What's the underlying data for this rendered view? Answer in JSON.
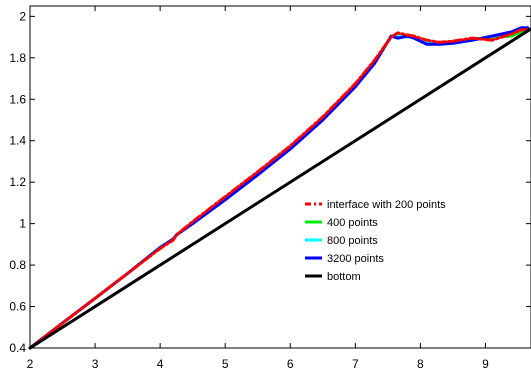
{
  "chart_data": {
    "type": "line",
    "title": "",
    "xlabel": "",
    "ylabel": "",
    "xlim": [
      2,
      9.7
    ],
    "ylim": [
      0.4,
      2.05
    ],
    "xticks": [
      2,
      3,
      4,
      5,
      6,
      7,
      8,
      9
    ],
    "yticks": [
      0.4,
      0.6,
      0.8,
      1,
      1.2,
      1.4,
      1.6,
      1.8,
      2
    ],
    "grid": false,
    "legend_position": "center-right",
    "series": [
      {
        "name": "interface with 200 points",
        "color": "#ff0000",
        "style": "dashdot",
        "x": [
          2.0,
          2.5,
          3.0,
          3.5,
          4.0,
          4.2,
          4.25,
          4.5,
          5.0,
          5.5,
          6.0,
          6.5,
          7.0,
          7.3,
          7.55,
          7.65,
          7.8,
          7.9,
          8.1,
          8.3,
          8.5,
          8.8,
          9.1,
          9.4,
          9.55,
          9.65
        ],
        "y": [
          0.4,
          0.52,
          0.64,
          0.76,
          0.88,
          0.92,
          0.945,
          1.01,
          1.13,
          1.25,
          1.375,
          1.515,
          1.675,
          1.79,
          1.9,
          1.92,
          1.91,
          1.905,
          1.885,
          1.875,
          1.88,
          1.895,
          1.885,
          1.915,
          1.935,
          1.935
        ]
      },
      {
        "name": "400 points",
        "color": "#00ee00",
        "style": "solid",
        "x": [
          2.0,
          2.5,
          3.0,
          3.5,
          4.0,
          4.2,
          4.25,
          4.5,
          5.0,
          5.5,
          6.0,
          6.5,
          7.0,
          7.3,
          7.55,
          7.65,
          7.8,
          7.9,
          8.1,
          8.3,
          8.5,
          8.8,
          9.1,
          9.4,
          9.55,
          9.65
        ],
        "y": [
          0.4,
          0.52,
          0.64,
          0.76,
          0.885,
          0.925,
          0.945,
          1.005,
          1.125,
          1.245,
          1.37,
          1.51,
          1.67,
          1.785,
          1.9,
          1.91,
          1.905,
          1.895,
          1.875,
          1.865,
          1.875,
          1.89,
          1.9,
          1.905,
          1.925,
          1.935
        ]
      },
      {
        "name": "800 points",
        "color": "#00ffff",
        "style": "solid",
        "x": [
          2.0,
          2.5,
          3.0,
          3.5,
          4.0,
          4.2,
          4.25,
          4.5,
          5.0,
          5.5,
          6.0,
          6.5,
          7.0,
          7.3,
          7.55,
          7.65,
          7.8,
          7.9,
          8.1,
          8.3,
          8.5,
          8.8,
          9.1,
          9.4,
          9.55,
          9.65
        ],
        "y": [
          0.4,
          0.52,
          0.64,
          0.76,
          0.885,
          0.925,
          0.945,
          1.003,
          1.12,
          1.24,
          1.365,
          1.505,
          1.665,
          1.78,
          1.9,
          1.905,
          1.9,
          1.905,
          1.87,
          1.865,
          1.87,
          1.885,
          1.905,
          1.92,
          1.94,
          1.94
        ]
      },
      {
        "name": "3200 points",
        "color": "#0000ff",
        "style": "solid",
        "x": [
          2.0,
          2.5,
          3.0,
          3.5,
          4.0,
          4.2,
          4.25,
          4.5,
          5.0,
          5.5,
          6.0,
          6.5,
          7.0,
          7.3,
          7.55,
          7.65,
          7.8,
          7.9,
          8.1,
          8.3,
          8.5,
          8.8,
          9.1,
          9.4,
          9.55,
          9.65
        ],
        "y": [
          0.4,
          0.52,
          0.64,
          0.76,
          0.885,
          0.925,
          0.945,
          1.0,
          1.115,
          1.235,
          1.36,
          1.5,
          1.66,
          1.775,
          1.905,
          1.895,
          1.905,
          1.895,
          1.865,
          1.865,
          1.87,
          1.885,
          1.905,
          1.925,
          1.945,
          1.945
        ]
      },
      {
        "name": "bottom",
        "color": "#000000",
        "style": "solid",
        "x": [
          2.0,
          9.7
        ],
        "y": [
          0.4,
          1.94
        ]
      }
    ]
  }
}
